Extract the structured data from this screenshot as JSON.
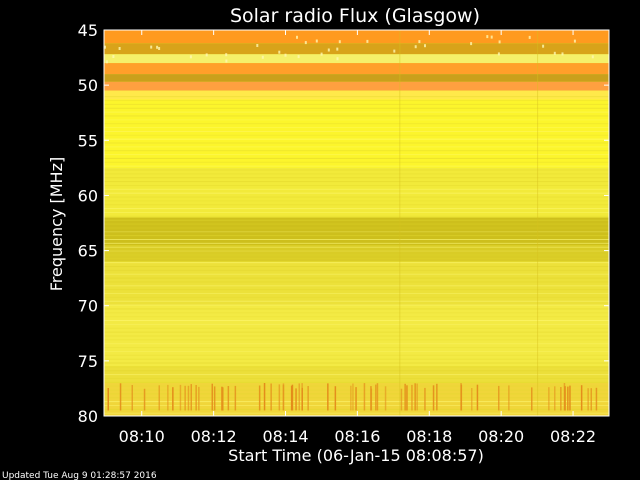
{
  "chart_data": {
    "type": "heatmap",
    "title": "Solar radio Flux (Glasgow)",
    "ylabel": "Frequency [MHz]",
    "xlabel": "Start Time (06-Jan-15 08:08:57)",
    "ylim": [
      45,
      80
    ],
    "y_inverted": true,
    "ytick_values": [
      45,
      50,
      55,
      60,
      65,
      70,
      75,
      80
    ],
    "ytick_labels": [
      "45",
      "50",
      "55",
      "60",
      "65",
      "70",
      "75",
      "80"
    ],
    "xlim_minutes": [
      "08:08:57",
      "08:23:00"
    ],
    "xtick_labels": [
      "08:10",
      "08:12",
      "08:14",
      "08:16",
      "08:18",
      "08:20",
      "08:22"
    ],
    "xtick_times": [
      "08:10",
      "08:12",
      "08:14",
      "08:16",
      "08:18",
      "08:20",
      "08:22"
    ],
    "grid": false,
    "colormap": "yellow-orange intensity",
    "bands": [
      {
        "from": 45.0,
        "to": 46.2,
        "color": "#ff9a1f"
      },
      {
        "from": 46.2,
        "to": 47.2,
        "color": "#d8a31a"
      },
      {
        "from": 47.2,
        "to": 48.0,
        "color": "#f5f06a"
      },
      {
        "from": 48.0,
        "to": 49.0,
        "color": "#ff9f2a"
      },
      {
        "from": 49.0,
        "to": 49.7,
        "color": "#c9a01c"
      },
      {
        "from": 49.7,
        "to": 50.5,
        "color": "#ffa040"
      },
      {
        "from": 50.5,
        "to": 51.3,
        "color": "#ffe94a"
      },
      {
        "from": 51.3,
        "to": 57.5,
        "color": "#fcf52c"
      },
      {
        "from": 57.5,
        "to": 62.0,
        "color": "#f2ea3a"
      },
      {
        "from": 62.0,
        "to": 64.5,
        "color": "#cdbf1c"
      },
      {
        "from": 64.5,
        "to": 66.0,
        "color": "#d9cc26"
      },
      {
        "from": 66.0,
        "to": 70.0,
        "color": "#ece13a"
      },
      {
        "from": 70.0,
        "to": 75.5,
        "color": "#f3ea44"
      },
      {
        "from": 75.5,
        "to": 77.0,
        "color": "#ecdf3a"
      },
      {
        "from": 77.0,
        "to": 80.0,
        "color": "#f0d63a"
      }
    ],
    "burst_region": {
      "from": 77.0,
      "to": 79.5,
      "color": "#e38b1a"
    }
  },
  "footer": {
    "updated": "Updated Tue Aug  9 01:28:57 2016"
  },
  "colors": {
    "background": "#000000",
    "axes": "#ffffff"
  }
}
